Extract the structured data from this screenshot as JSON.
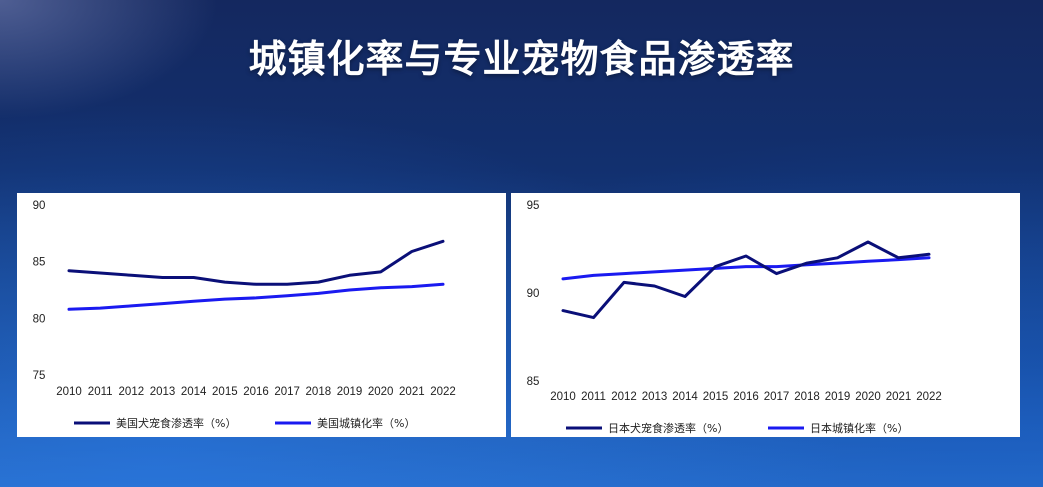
{
  "page": {
    "title": "城镇化率与专业宠物食品渗透率"
  },
  "colors": {
    "series_dark": "#0a0f78",
    "series_bright": "#1a1af0"
  },
  "chart_data": [
    {
      "type": "line",
      "x": [
        "2010",
        "2011",
        "2012",
        "2013",
        "2014",
        "2015",
        "2016",
        "2017",
        "2018",
        "2019",
        "2020",
        "2021",
        "2022"
      ],
      "ylim": [
        75,
        90
      ],
      "yticks": [
        "75",
        "80",
        "85",
        "90"
      ],
      "grid": false,
      "legend_position": "bottom",
      "series": [
        {
          "name": "美国犬宠食渗透率（%）",
          "color": "#0a0f78",
          "values": [
            84.2,
            84.0,
            83.8,
            83.6,
            83.6,
            83.2,
            83.0,
            83.0,
            83.2,
            83.8,
            84.1,
            85.9,
            86.8
          ]
        },
        {
          "name": "美国城镇化率（%）",
          "color": "#1a1af0",
          "values": [
            80.8,
            80.9,
            81.1,
            81.3,
            81.5,
            81.7,
            81.8,
            82.0,
            82.2,
            82.5,
            82.7,
            82.8,
            83.0
          ]
        }
      ]
    },
    {
      "type": "line",
      "x": [
        "2010",
        "2011",
        "2012",
        "2013",
        "2014",
        "2015",
        "2016",
        "2017",
        "2018",
        "2019",
        "2020",
        "2021",
        "2022"
      ],
      "ylim": [
        85,
        95
      ],
      "yticks": [
        "85",
        "90",
        "95"
      ],
      "grid": false,
      "legend_position": "bottom",
      "series": [
        {
          "name": "日本犬宠食渗透率（%）",
          "color": "#0a0f78",
          "values": [
            89.0,
            88.6,
            90.6,
            90.4,
            89.8,
            91.5,
            92.1,
            91.1,
            91.7,
            92.0,
            92.9,
            92.0,
            92.2
          ]
        },
        {
          "name": "日本城镇化率（%）",
          "color": "#1a1af0",
          "values": [
            90.8,
            91.0,
            91.1,
            91.2,
            91.3,
            91.4,
            91.5,
            91.5,
            91.6,
            91.7,
            91.8,
            91.9,
            92.0
          ]
        }
      ]
    }
  ]
}
